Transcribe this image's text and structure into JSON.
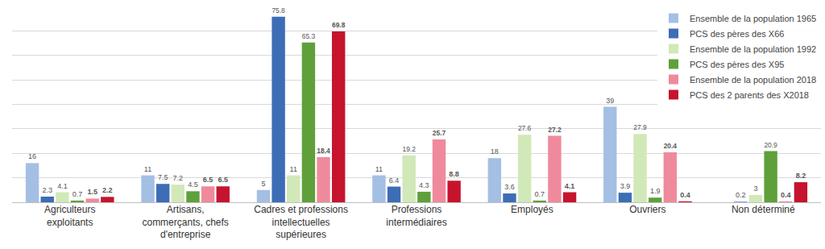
{
  "chart_data": {
    "type": "bar",
    "categories": [
      "Agriculteurs\nexploitants",
      "Artisans,\ncommerçants, chefs\nd'entreprise",
      "Cadres et professions\nintellectuelles\nsupérieures",
      "Professions\nintermédiaires",
      "Employés",
      "Ouvriers",
      "Non déterminé"
    ],
    "series": [
      {
        "name": "Ensemble de la population 1965",
        "color": "#a4bfe4",
        "values": [
          16,
          11,
          5,
          11,
          18,
          39,
          null
        ]
      },
      {
        "name": "PCS des pères des X66",
        "color": "#3d6db5",
        "values": [
          2.3,
          7.5,
          75.8,
          6.4,
          3.6,
          3.9,
          0.2
        ]
      },
      {
        "name": "Ensemble de la population 1992",
        "color": "#d1e8b8",
        "values": [
          4.1,
          7.2,
          11,
          19.2,
          27.6,
          27.9,
          3
        ]
      },
      {
        "name": "PCS des pères des X95",
        "color": "#5fa03b",
        "values": [
          0.7,
          4.5,
          65.3,
          4.3,
          0.7,
          1.9,
          20.9
        ]
      },
      {
        "name": "Ensemble de la population 2018",
        "color": "#ef8a9c",
        "values": [
          1.5,
          6.5,
          18.4,
          25.7,
          27.2,
          20.4,
          0.4
        ]
      },
      {
        "name": "PCS des 2 parents des X2018",
        "color": "#c6142e",
        "values": [
          2.2,
          6.5,
          69.8,
          8.8,
          4.1,
          0.4,
          8.2
        ]
      }
    ],
    "ylim": [
      0,
      80
    ],
    "yticks": [
      0,
      10,
      20,
      30,
      40,
      50,
      60,
      70,
      80
    ],
    "grid": true,
    "legend": "top-right",
    "data_labels": true,
    "tick_labels": "x"
  }
}
